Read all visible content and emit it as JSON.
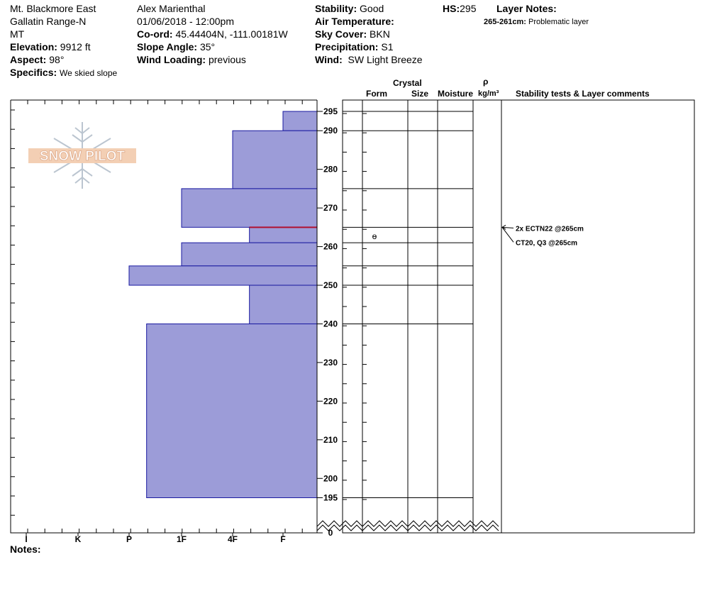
{
  "header": {
    "location": "Mt. Blackmore East",
    "range": "Gallatin Range-N",
    "state": "MT",
    "elevation_label": "Elevation:",
    "elevation_value": "9912 ft",
    "aspect_label": "Aspect:",
    "aspect_value": "98°",
    "specifics_label": "Specifics:",
    "specifics_value": "We skied slope",
    "observer": "Alex Marienthal",
    "datetime": "01/06/2018 - 12:00pm",
    "coord_label": "Co-ord:",
    "coord_value": "45.44404N, -111.00181W",
    "slope_label": "Slope Angle:",
    "slope_value": "35°",
    "wind_loading_label": "Wind Loading:",
    "wind_loading_value": "previous",
    "stability_label": "Stability:",
    "stability_value": "Good",
    "air_temp_label": "Air Temperature:",
    "air_temp_value": "",
    "sky_label": "Sky Cover:",
    "sky_value": "BKN",
    "precip_label": "Precipitation:",
    "precip_value": "S1",
    "wind_label": "Wind:",
    "wind_value": "SW Light Breeze",
    "hs_label": "HS:",
    "hs_value": "295",
    "layer_notes_label": "Layer Notes:",
    "layer_note_range": "265-261cm:",
    "layer_note_text": "Problematic layer"
  },
  "logo_text": "SNOW PILOT",
  "columns": {
    "crystal": "Crystal",
    "form": "Form",
    "size": "Size",
    "moisture": "Moisture",
    "rho": "ρ",
    "density_unit": "kg/m³",
    "stability_tests": "Stability tests & Layer comments"
  },
  "notes_label": "Notes:",
  "colors": {
    "hardness_fill": "#9c9cd8",
    "hardness_stroke": "#1a1aa0",
    "problem_layer": "#b01030"
  },
  "chart_data": {
    "type": "bar",
    "orientation": "horizontal",
    "x_scale": "hand hardness",
    "x_ticks": [
      "I",
      "K",
      "P",
      "1F",
      "4F",
      "F"
    ],
    "y_unit": "cm",
    "y_ticks": [
      0,
      195,
      200,
      210,
      220,
      230,
      240,
      250,
      260,
      270,
      280,
      290,
      295
    ],
    "layers": [
      {
        "top": 295,
        "bottom": 290,
        "hardness": "F"
      },
      {
        "top": 290,
        "bottom": 275,
        "hardness": "4F"
      },
      {
        "top": 275,
        "bottom": 265,
        "hardness": "1F"
      },
      {
        "top": 265,
        "bottom": 261,
        "hardness": "4F-"
      },
      {
        "top": 261,
        "bottom": 255,
        "hardness": "1F"
      },
      {
        "top": 255,
        "bottom": 250,
        "hardness": "P"
      },
      {
        "top": 250,
        "bottom": 240,
        "hardness": "4F-"
      },
      {
        "top": 240,
        "bottom": 195,
        "hardness": "P-"
      }
    ],
    "layer_tops": [
      295,
      290,
      275,
      265,
      261,
      255,
      250,
      240,
      195
    ],
    "problematic_layer": {
      "top": 265,
      "bottom": 261
    },
    "crystal_form_symbol": {
      "depth": 263,
      "symbol": "ɵ"
    },
    "stability_tests": [
      {
        "text": "2x ECTN22 @265cm",
        "depth": 265
      },
      {
        "text": "CT20, Q3 @265cm",
        "depth": 265
      }
    ]
  }
}
